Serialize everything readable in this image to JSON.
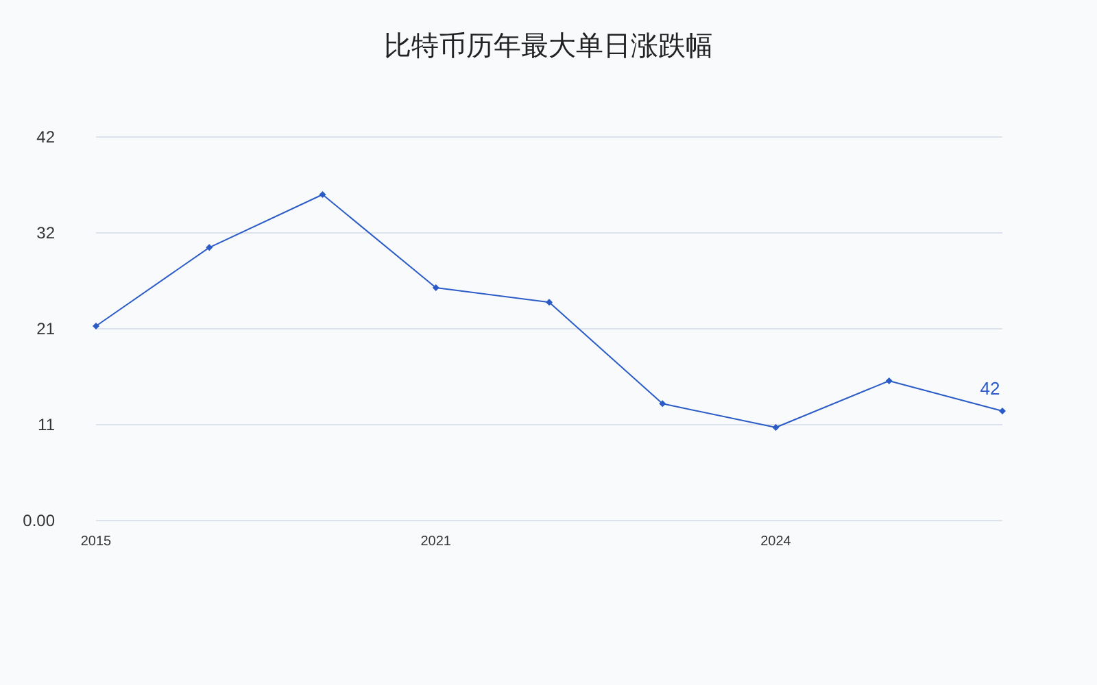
{
  "chart_data": {
    "type": "line",
    "title": "比特币历年最大单日涨跌幅",
    "categories": [
      "2015",
      null,
      null,
      "2021",
      null,
      null,
      "2024",
      null,
      null
    ],
    "series": [
      {
        "color": "#2a5bc7",
        "values": [
          21.3,
          29.9,
          35.7,
          25.5,
          23.9,
          12.8,
          10.2,
          15.3,
          12.0
        ]
      }
    ],
    "annotations": [
      "42"
    ],
    "ylim": [
      0,
      42
    ],
    "yticks": [
      {
        "value": 0,
        "label": "0.00"
      },
      {
        "value": 10.5,
        "label": "11"
      },
      {
        "value": 21,
        "label": "21"
      },
      {
        "value": 31.5,
        "label": "32"
      },
      42
    ],
    "grid": "y",
    "marker": "diamond",
    "line_style": "solid"
  }
}
